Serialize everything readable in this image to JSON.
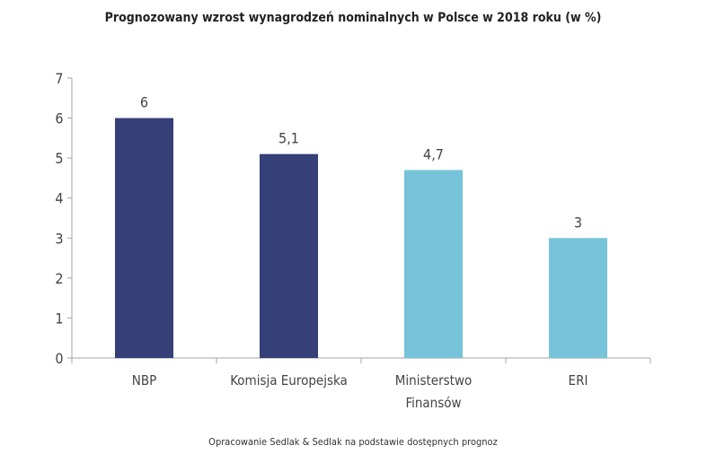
{
  "chart_data": {
    "type": "bar",
    "title": "Prognozowany wzrost wynagrodzeń nominalnych w Polsce w 2018 roku (w %)",
    "categories": [
      [
        "NBP"
      ],
      [
        "Komisja Europejska"
      ],
      [
        "Ministerstwo",
        "Finansów"
      ],
      [
        "ERI"
      ]
    ],
    "values": [
      6,
      5.1,
      4.7,
      3
    ],
    "data_labels": [
      "6",
      "5,1",
      "4,7",
      "3"
    ],
    "colors": [
      "#353f78",
      "#353f78",
      "#77c3d9",
      "#77c3d9"
    ],
    "ylim": [
      0,
      7
    ],
    "yticks": [
      "0",
      "1",
      "2",
      "3",
      "4",
      "5",
      "6",
      "7"
    ],
    "grid": false,
    "xlabel": "",
    "ylabel": ""
  },
  "source": "Opracowanie Sedlak & Sedlak na podstawie dostępnych prognoz"
}
